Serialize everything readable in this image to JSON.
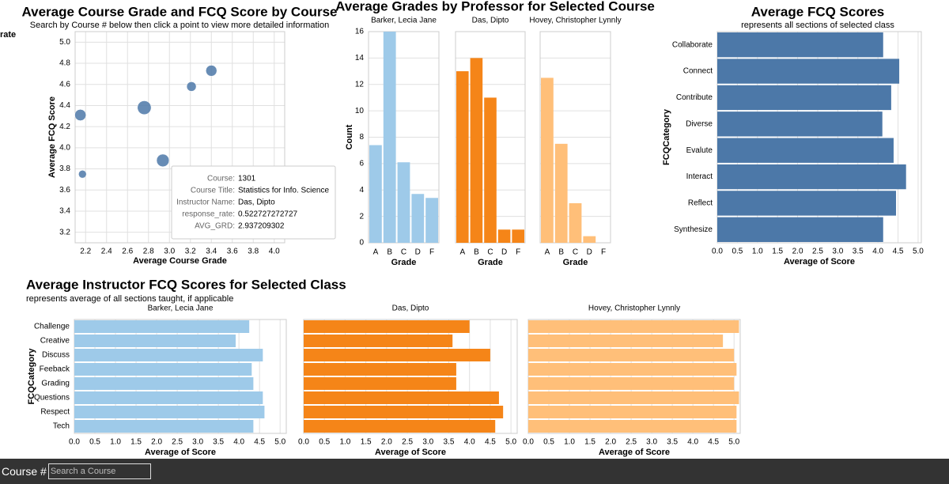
{
  "chart_data": [
    {
      "type": "scatter",
      "title": "Average Course Grade and FCQ Score by Course",
      "subtitle": "Search by Course # below then click a point to view more detailed information",
      "x_label": "Average Course Grade",
      "y_label": "Average FCQ Score",
      "legend_title": "rate",
      "x": [
        2.15,
        2.17,
        2.76,
        2.937209302,
        3.21,
        3.4
      ],
      "y": [
        4.31,
        3.75,
        4.38,
        3.88,
        4.58,
        4.73
      ],
      "sizes": [
        0.42,
        0.2,
        0.62,
        0.522727272727,
        0.3,
        0.4
      ],
      "color": "#4c78a8",
      "xlim": [
        2.1,
        4.1
      ],
      "xticks": [
        2.2,
        2.4,
        2.6,
        2.8,
        {
          "value": 3.0,
          "label": "3.0"
        },
        3.2,
        3.4,
        3.6,
        3.8,
        {
          "value": 4.0,
          "label": "4.0"
        }
      ],
      "ylim": [
        3.1,
        5.1
      ],
      "yticks": [
        3.2,
        3.4,
        3.6,
        3.8,
        {
          "value": 4.0,
          "label": "4.0"
        },
        4.2,
        4.4,
        4.6,
        4.8,
        {
          "value": 5.0,
          "label": "5.0"
        }
      ],
      "grid": true,
      "tooltip": [
        {
          "label": "Course:",
          "value": "1301"
        },
        {
          "label": "Course Title:",
          "value": "Statistics for Info. Science"
        },
        {
          "label": "Instructor Name:",
          "value": "Das, Dipto"
        },
        {
          "label": "response_rate:",
          "value": "0.522727272727"
        },
        {
          "label": "AVG_GRD:",
          "value": "2.937209302"
        }
      ]
    },
    {
      "type": "bar",
      "orientation": "vertical",
      "title": "Average Grades by Professor for Selected Course",
      "x_label": "Grade",
      "y_label": "Count",
      "categories": [
        "A",
        "B",
        "C",
        "D",
        "F"
      ],
      "series": [
        {
          "name": "Barker, Lecia Jane",
          "color": "#9ecae9",
          "values": [
            7.4,
            16,
            6.1,
            3.7,
            3.4
          ]
        },
        {
          "name": "Das, Dipto",
          "color": "#f58518",
          "values": [
            13,
            14,
            11,
            1,
            1
          ]
        },
        {
          "name": "Hovey, Christopher Lynnly",
          "color": "#ffbf79",
          "values": [
            12.5,
            7.5,
            3,
            0.5,
            0
          ]
        }
      ],
      "ylim": [
        0,
        16
      ],
      "yticks": [
        0,
        2,
        4,
        6,
        8,
        10,
        12,
        14,
        16
      ],
      "grid": true
    },
    {
      "type": "bar",
      "orientation": "horizontal",
      "title": "Average FCQ Scores",
      "subtitle": "represents all sections of selected class",
      "x_label": "Average of Score",
      "y_label": "FCQCategory",
      "categories": [
        "Collaborate",
        "Connect",
        "Contribute",
        "Diverse",
        "Evalute",
        "Interact",
        "Reflect",
        "Synthesize"
      ],
      "values": [
        4.13,
        4.53,
        4.33,
        4.11,
        4.39,
        4.7,
        4.45,
        4.13
      ],
      "color": "#4c78a8",
      "xlim": [
        0,
        5.08
      ],
      "xticks": [
        {
          "value": 0,
          "label": "0.0"
        },
        0.5,
        {
          "value": 1,
          "label": "1.0"
        },
        1.5,
        {
          "value": 2,
          "label": "2.0"
        },
        2.5,
        {
          "value": 3,
          "label": "3.0"
        },
        3.5,
        {
          "value": 4,
          "label": "4.0"
        },
        4.5,
        {
          "value": 5,
          "label": "5.0"
        }
      ],
      "grid": true
    },
    {
      "type": "bar",
      "orientation": "horizontal",
      "title": "Average Instructor FCQ Scores for Selected Class",
      "subtitle": "represents average of all sections taught, if applicable",
      "x_label": "Average of Score",
      "y_label": "FCQCategory",
      "categories": [
        "Challenge",
        "Creative",
        "Discuss",
        "Feeback",
        "Grading",
        "Questions",
        "Respect",
        "Tech"
      ],
      "series": [
        {
          "name": "Barker, Lecia Jane",
          "color": "#9ecae9",
          "values": [
            4.25,
            3.92,
            4.58,
            4.31,
            4.35,
            4.58,
            4.62,
            4.35
          ]
        },
        {
          "name": "Das, Dipto",
          "color": "#f58518",
          "values": [
            4.0,
            3.59,
            4.5,
            3.68,
            3.68,
            4.71,
            4.81,
            4.62
          ]
        },
        {
          "name": "Hovey, Christopher Lynnly",
          "color": "#ffbf79",
          "values": [
            5.12,
            4.73,
            5.0,
            5.06,
            5.0,
            5.12,
            5.06,
            5.06
          ]
        }
      ],
      "xlim": [
        0,
        5.15
      ],
      "xticks": [
        {
          "value": 0,
          "label": "0.0"
        },
        0.5,
        {
          "value": 1,
          "label": "1.0"
        },
        1.5,
        {
          "value": 2,
          "label": "2.0"
        },
        2.5,
        {
          "value": 3,
          "label": "3.0"
        },
        3.5,
        {
          "value": 4,
          "label": "4.0"
        },
        4.5,
        {
          "value": 5,
          "label": "5.0"
        }
      ],
      "grid": true
    }
  ],
  "controls": {
    "label": "Course #",
    "placeholder": "Search a Course"
  }
}
